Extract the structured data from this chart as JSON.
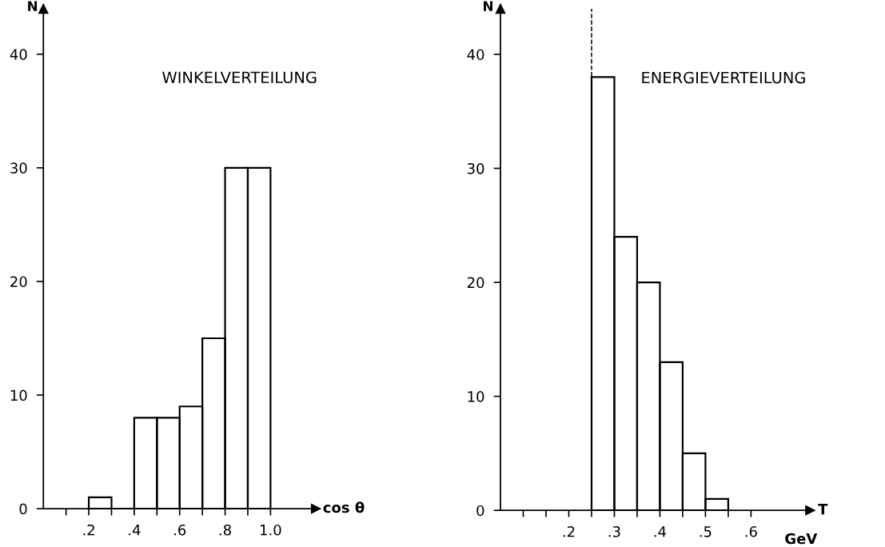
{
  "chart_data": [
    {
      "type": "histogram",
      "title": "WINKELVERTEILUNG",
      "xlabel": "cos θ",
      "ylabel": "N",
      "color": "#000000",
      "bins": [
        0.2,
        0.3,
        0.4,
        0.5,
        0.6,
        0.7,
        0.8,
        0.9,
        1.0
      ],
      "values": [
        1,
        0,
        8,
        8,
        9,
        15,
        30,
        30
      ],
      "xlim": [
        0,
        1.2
      ],
      "ylim": [
        0,
        44
      ],
      "xticks": [
        {
          "value": 0.1,
          "label": null
        },
        {
          "value": 0.2,
          "label": ".2"
        },
        {
          "value": 0.3,
          "label": null
        },
        {
          "value": 0.4,
          "label": ".4"
        },
        {
          "value": 0.5,
          "label": null
        },
        {
          "value": 0.6,
          "label": ".6"
        },
        {
          "value": 0.7,
          "label": null
        },
        {
          "value": 0.8,
          "label": ".8"
        },
        {
          "value": 0.9,
          "label": null
        },
        {
          "value": 1.0,
          "label": "1.0"
        }
      ],
      "yticks": [
        0,
        10,
        20,
        30,
        40
      ],
      "grid": false
    },
    {
      "type": "histogram",
      "title": "ENERGIEVERTEILUNG",
      "xlabel": "T",
      "ylabel": "N",
      "color": "#000000",
      "bins": [
        0.25,
        0.3,
        0.35,
        0.4,
        0.45,
        0.5,
        0.55
      ],
      "values": [
        38,
        24,
        20,
        13,
        5,
        1
      ],
      "xlim": [
        0.05,
        0.73
      ],
      "ylim": [
        0,
        44
      ],
      "xticks": [
        {
          "value": 0.1,
          "label": null
        },
        {
          "value": 0.15,
          "label": null
        },
        {
          "value": 0.2,
          "label": ".2"
        },
        {
          "value": 0.25,
          "label": null
        },
        {
          "value": 0.3,
          "label": ".3"
        },
        {
          "value": 0.35,
          "label": null
        },
        {
          "value": 0.4,
          "label": ".4"
        },
        {
          "value": 0.45,
          "label": null
        },
        {
          "value": 0.5,
          "label": ".5"
        },
        {
          "value": 0.55,
          "label": null
        },
        {
          "value": 0.6,
          "label": ".6"
        }
      ],
      "yticks": [
        0,
        10,
        20,
        30,
        40
      ],
      "grid": false,
      "ref_lines": [
        {
          "axis": "x",
          "value": 0.25,
          "label": null,
          "color": "#000000",
          "line_style": "dashed"
        }
      ],
      "annotations": [
        "GeV"
      ]
    }
  ]
}
